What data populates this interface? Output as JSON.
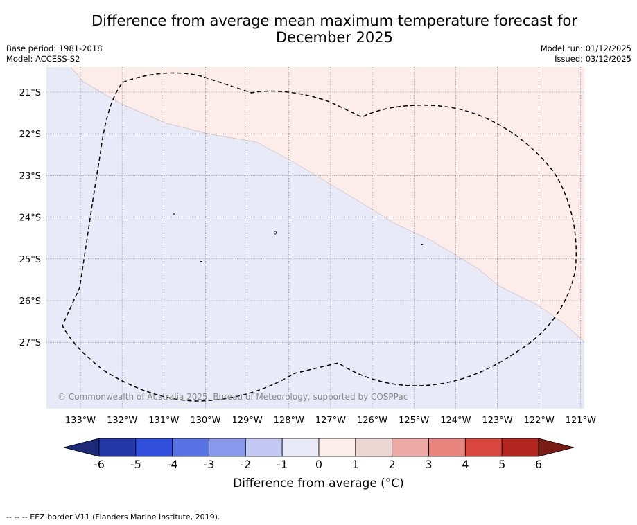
{
  "title_line1": "Difference from average mean maximum temperature forecast for",
  "title_line2": "December 2025",
  "base_period": "Base period: 1981-2018",
  "model": "Model: ACCESS-S2",
  "model_run": "Model run: 01/12/2025",
  "issued": "Issued: 03/12/2025",
  "copyright": "© Commonwealth of Australia 2025, Bureau of Meteorology, supported by COSPPac",
  "lat_labels": [
    "21°S",
    "22°S",
    "23°S",
    "24°S",
    "25°S",
    "26°S",
    "27°S"
  ],
  "lon_labels": [
    "133°W",
    "132°W",
    "131°W",
    "130°W",
    "129°W",
    "128°W",
    "127°W",
    "126°W",
    "125°W",
    "124°W",
    "123°W",
    "122°W",
    "121°W"
  ],
  "colorbar": {
    "ticks": [
      "-6",
      "-5",
      "-4",
      "-3",
      "-2",
      "-1",
      "0",
      "1",
      "2",
      "3",
      "4",
      "5",
      "6"
    ],
    "label": "Difference from average (°C)",
    "colors": [
      "#2436a8",
      "#2f4fdc",
      "#5a73e4",
      "#8898ec",
      "#c3c9f2",
      "#e8eaf8",
      "#fcecea",
      "#ecd6d4",
      "#eeaaa4",
      "#e8857f",
      "#d9473f",
      "#b2261f"
    ],
    "under_color": "#1c2a78",
    "over_color": "#7a1c16"
  },
  "fill_colors": {
    "below": "#e8eaf8",
    "above": "#fcecea"
  },
  "footnote": "--  --  -- EEZ border V11 (Flanders Marine Institute, 2019)."
}
